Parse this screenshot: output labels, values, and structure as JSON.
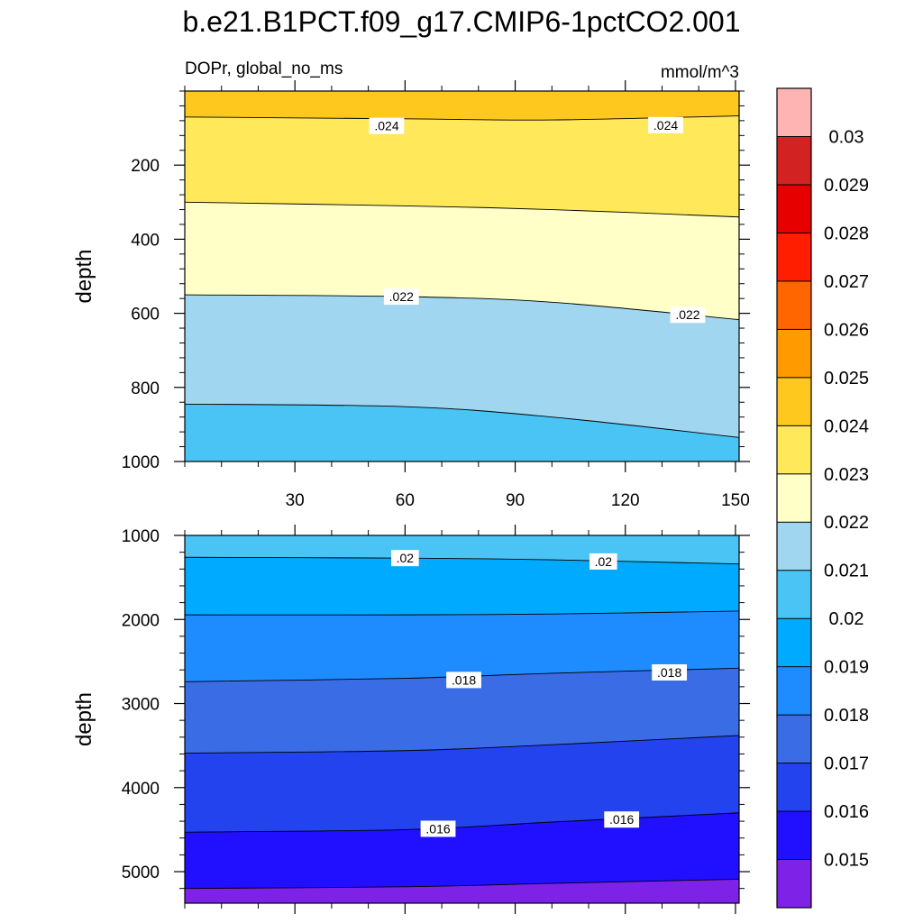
{
  "chart_data": {
    "type": "contour",
    "title": "b.e21.B1PCT.f09_g17.CMIP6-1pctCO2.001",
    "subtitle_left": "DOPr, global_no_ms",
    "subtitle_right": "mmol/m^3",
    "colorbar": {
      "levels": [
        0.015,
        0.016,
        0.017,
        0.018,
        0.019,
        0.02,
        0.021,
        0.022,
        0.023,
        0.024,
        0.025,
        0.026,
        0.027,
        0.028,
        0.029,
        0.03
      ],
      "tick_labels": [
        "0.015",
        "0.016",
        "0.017",
        "0.018",
        "0.019",
        "0.02",
        "0.021",
        "0.022",
        "0.023",
        "0.024",
        "0.025",
        "0.026",
        "0.027",
        "0.028",
        "0.029",
        "0.03"
      ],
      "colors": [
        "#7F22E8",
        "#2010FF",
        "#2243EE",
        "#3A6CE6",
        "#1E8CFF",
        "#00ABFF",
        "#4AC3F5",
        "#A0D6EF",
        "#FFFFC8",
        "#FFE85A",
        "#FFC81E",
        "#FF9A00",
        "#FF6600",
        "#FF1E00",
        "#E60000",
        "#D22222",
        "#FFB4B4"
      ]
    },
    "panels": [
      {
        "ylabel": "depth",
        "ylim": [
          1000,
          0
        ],
        "y_ticks": [
          200,
          400,
          600,
          800,
          1000
        ],
        "y_tick_labels": [
          "200",
          "400",
          "600",
          "800",
          "1000"
        ],
        "xlim": [
          0,
          151
        ],
        "x_ticks": [
          30,
          60,
          90,
          120,
          150
        ],
        "x_tick_labels": [
          "30",
          "60",
          "90",
          "120",
          "150"
        ],
        "bands": [
          {
            "level": 0.024,
            "color": "#FFC81E",
            "boundary": [
              [
                0,
                70
              ],
              [
                60,
                75
              ],
              [
                100,
                78
              ],
              [
                151,
                67
              ]
            ]
          },
          {
            "level": 0.023,
            "color": "#FFE85A",
            "boundary": [
              [
                0,
                300
              ],
              [
                60,
                310
              ],
              [
                100,
                320
              ],
              [
                151,
                340
              ]
            ]
          },
          {
            "level": 0.022,
            "color": "#FFFFC8",
            "boundary": [
              [
                0,
                550
              ],
              [
                60,
                555
              ],
              [
                100,
                570
              ],
              [
                151,
                617
              ]
            ]
          },
          {
            "level": 0.021,
            "color": "#A0D6EF",
            "boundary": [
              [
                0,
                845
              ],
              [
                60,
                852
              ],
              [
                100,
                880
              ],
              [
                151,
                935
              ]
            ]
          },
          {
            "level": 0.02,
            "color": "#4AC3F5",
            "boundary": null
          }
        ],
        "contour_labels": [
          {
            "text": ".024",
            "x": 55,
            "y": 94
          },
          {
            "text": ".024",
            "x": 131,
            "y": 92
          },
          {
            "text": ".022",
            "x": 59,
            "y": 555
          },
          {
            "text": ".022",
            "x": 137,
            "y": 604
          }
        ]
      },
      {
        "ylabel": "depth",
        "ylim": [
          5375,
          1000
        ],
        "y_ticks": [
          1000,
          2000,
          3000,
          4000,
          5000
        ],
        "y_tick_labels": [
          "1000",
          "2000",
          "3000",
          "4000",
          "5000"
        ],
        "xlim": [
          0,
          151
        ],
        "x_ticks": [
          30,
          60,
          90,
          120,
          150
        ],
        "x_tick_labels": [],
        "bands": [
          {
            "level": 0.021,
            "color": "#4AC3F5",
            "boundary": [
              [
                0,
                1260
              ],
              [
                60,
                1270
              ],
              [
                100,
                1290
              ],
              [
                151,
                1340
              ]
            ]
          },
          {
            "level": 0.02,
            "color": "#00ABFF",
            "boundary": [
              [
                0,
                1945
              ],
              [
                60,
                1945
              ],
              [
                100,
                1935
              ],
              [
                151,
                1900
              ]
            ]
          },
          {
            "level": 0.019,
            "color": "#1E8CFF",
            "boundary": [
              [
                0,
                2740
              ],
              [
                60,
                2700
              ],
              [
                100,
                2640
              ],
              [
                151,
                2580
              ]
            ]
          },
          {
            "level": 0.018,
            "color": "#3A6CE6",
            "boundary": [
              [
                0,
                3590
              ],
              [
                60,
                3560
              ],
              [
                100,
                3490
              ],
              [
                151,
                3380
              ]
            ]
          },
          {
            "level": 0.017,
            "color": "#2243EE",
            "boundary": [
              [
                0,
                4530
              ],
              [
                60,
                4500
              ],
              [
                100,
                4410
              ],
              [
                151,
                4300
              ]
            ]
          },
          {
            "level": 0.016,
            "color": "#2010FF",
            "boundary": [
              [
                0,
                5200
              ],
              [
                60,
                5180
              ],
              [
                100,
                5140
              ],
              [
                151,
                5090
              ]
            ]
          },
          {
            "level": 0.015,
            "color": "#7F22E8",
            "boundary": null
          }
        ],
        "contour_labels": [
          {
            "text": ".02",
            "x": 60,
            "y": 1270
          },
          {
            "text": ".02",
            "x": 114,
            "y": 1310
          },
          {
            "text": ".018",
            "x": 76,
            "y": 2720
          },
          {
            "text": ".018",
            "x": 132,
            "y": 2630
          },
          {
            "text": ".016",
            "x": 69,
            "y": 4490
          },
          {
            "text": ".016",
            "x": 119,
            "y": 4380
          }
        ]
      }
    ]
  }
}
